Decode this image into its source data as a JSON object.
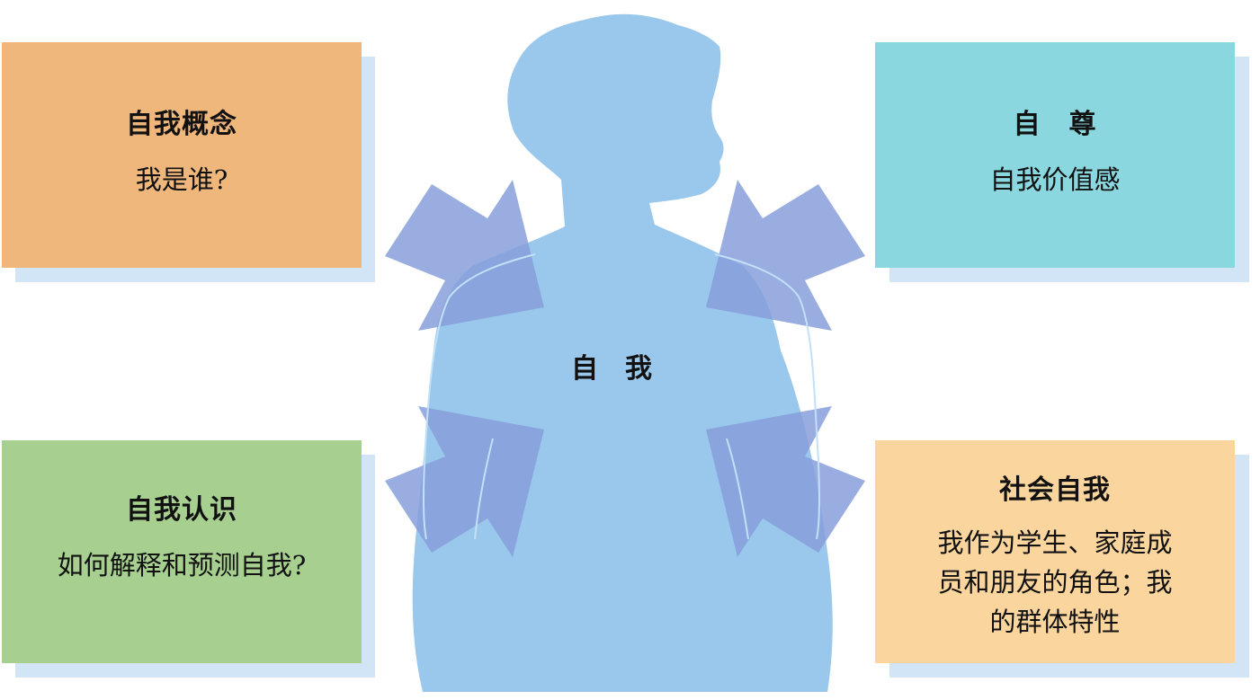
{
  "center": {
    "label": "自　我"
  },
  "boxes": {
    "top_left": {
      "title": "自我概念",
      "sub": "我是谁?",
      "color": "#f0b77d"
    },
    "top_right": {
      "title": "自　尊",
      "sub": "自我价值感",
      "color": "#8ad7e0"
    },
    "bottom_left": {
      "title": "自我认识",
      "sub": "如何解释和预测自我?",
      "color": "#a7cf8f"
    },
    "bottom_right": {
      "title": "社会自我",
      "sub_lines": [
        "我作为学生、家庭成",
        "员和朋友的角色；我",
        "的群体特性"
      ],
      "color": "#fad59d"
    }
  },
  "colors": {
    "silhouette": "#9ac8ec",
    "arrow": "#879fdb",
    "shadow": "#d2e5f6"
  }
}
